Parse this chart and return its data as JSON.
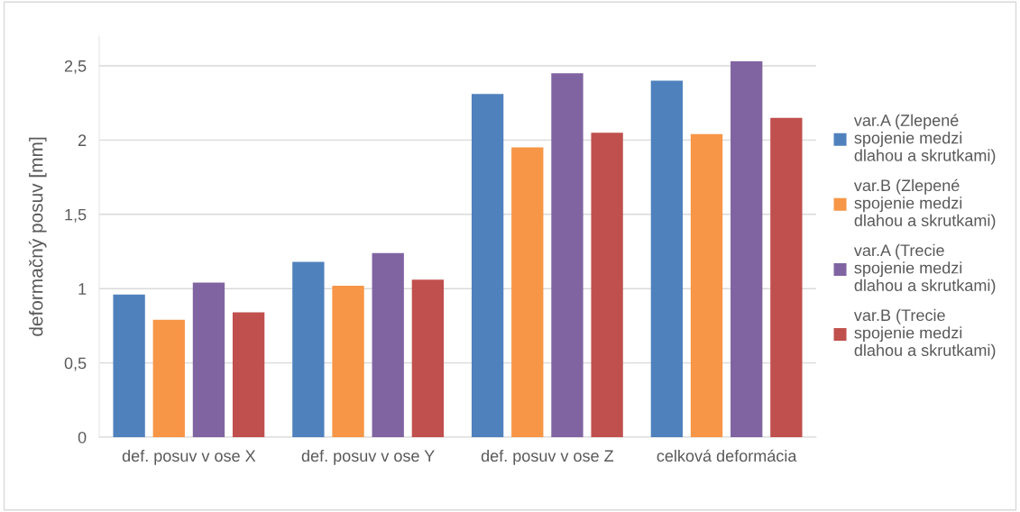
{
  "chart_data": {
    "type": "bar",
    "ylabel": "deformačný posuv [mm]",
    "categories": [
      "def. posuv v ose X",
      "def. posuv v ose Y",
      "def. posuv v ose Z",
      "celková deformácia"
    ],
    "series": [
      {
        "name": "var.A (Zlepené spojenie medzi dlahou a skrutkami)",
        "color": "#4f81bd",
        "values": [
          0.96,
          1.18,
          2.31,
          2.4
        ]
      },
      {
        "name": "var.B (Zlepené spojenie medzi dlahou a skrutkami)",
        "color": "#f79646",
        "values": [
          0.79,
          1.02,
          1.95,
          2.04
        ]
      },
      {
        "name": "var.A (Trecie spojenie medzi dlahou a skrutkami)",
        "color": "#8064a2",
        "values": [
          1.04,
          1.24,
          2.45,
          2.53
        ]
      },
      {
        "name": "var.B (Trecie spojenie medzi dlahou a skrutkami)",
        "color": "#c0504d",
        "values": [
          0.84,
          1.06,
          2.05,
          2.15
        ]
      }
    ],
    "ylim": [
      0,
      2.7
    ],
    "yticks": [
      0,
      {
        "value": 0.5,
        "label": "0,5"
      },
      1,
      {
        "value": 1.5,
        "label": "1,5"
      },
      2,
      {
        "value": 2.5,
        "label": "2,5"
      }
    ],
    "grid": "y",
    "legend": "right"
  }
}
